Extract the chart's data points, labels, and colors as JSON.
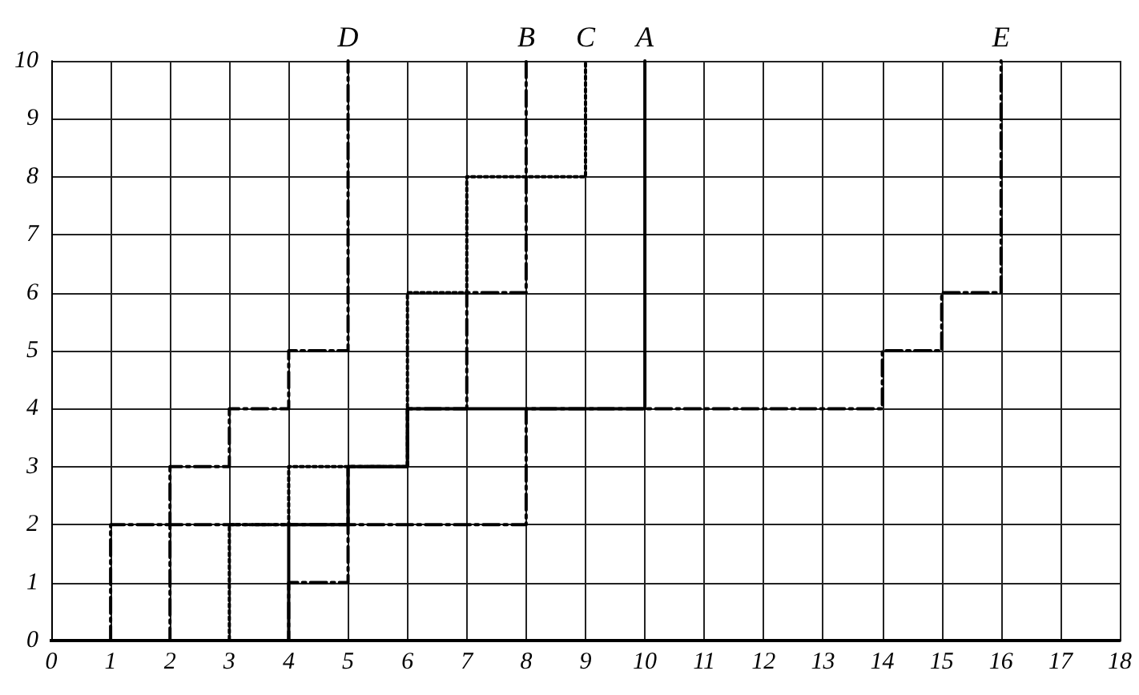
{
  "chart_data": {
    "type": "step",
    "xlim": [
      0,
      18
    ],
    "xticks": [
      0,
      1,
      2,
      3,
      4,
      5,
      6,
      7,
      8,
      9,
      10,
      11,
      12,
      13,
      14,
      15,
      16,
      17,
      18
    ],
    "ylim": [
      0,
      10
    ],
    "yticks": [
      0,
      1,
      2,
      3,
      4,
      5,
      6,
      7,
      8,
      9,
      10
    ],
    "grid": true,
    "legend": false,
    "marker": "none",
    "series": [
      {
        "name": "A",
        "color": "#000000",
        "line_style": "solid",
        "x": [
          0,
          4,
          5,
          6,
          10
        ],
        "values": [
          0,
          2,
          3,
          4,
          10
        ]
      },
      {
        "name": "B",
        "color": "#000000",
        "line_style": "dashed",
        "x": [
          0,
          2,
          5,
          6,
          7,
          8
        ],
        "values": [
          0,
          2,
          3,
          4,
          6,
          10
        ]
      },
      {
        "name": "C",
        "color": "#000000",
        "line_style": "dotted",
        "x": [
          0,
          3,
          4,
          6,
          7,
          9
        ],
        "values": [
          0,
          2,
          3,
          6,
          8,
          10
        ]
      },
      {
        "name": "D",
        "color": "#000000",
        "line_style": "dashed",
        "x": [
          0,
          1,
          2,
          3,
          4,
          5
        ],
        "values": [
          0,
          2,
          3,
          4,
          5,
          10
        ]
      },
      {
        "name": "E",
        "color": "#000000",
        "line_style": "dashed",
        "x": [
          0,
          4,
          5,
          8,
          14,
          15,
          16
        ],
        "values": [
          0,
          1,
          2,
          4,
          5,
          6,
          10
        ]
      }
    ]
  }
}
